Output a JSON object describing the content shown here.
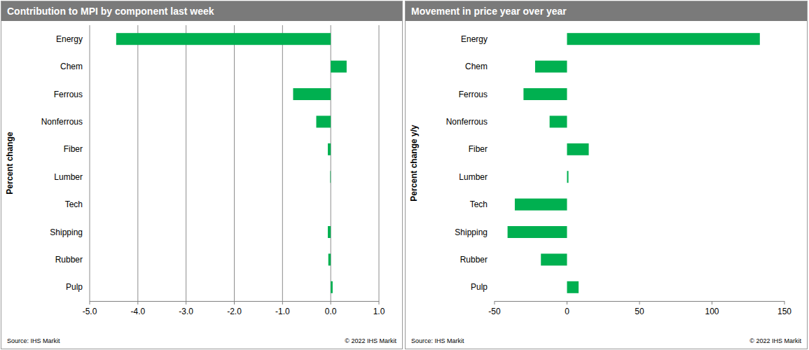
{
  "chart_data": [
    {
      "type": "bar",
      "orientation": "horizontal",
      "title": "Contribution to MPI by component last week",
      "ylabel": "Percent change",
      "categories": [
        "Energy",
        "Chem",
        "Ferrous",
        "Nonferrous",
        "Fiber",
        "Lumber",
        "Tech",
        "Shipping",
        "Rubber",
        "Pulp"
      ],
      "values": [
        -4.45,
        0.33,
        -0.78,
        -0.3,
        -0.06,
        -0.01,
        0.0,
        -0.06,
        -0.05,
        0.04
      ],
      "color": "#00b050",
      "xlim": [
        -5,
        1
      ],
      "xticks": [
        {
          "value": -5,
          "label": "-5.0"
        },
        {
          "value": -4,
          "label": "-4.0"
        },
        {
          "value": -3,
          "label": "-3.0"
        },
        {
          "value": -2,
          "label": "-2.0"
        },
        {
          "value": -1,
          "label": "-1.0"
        },
        {
          "value": 0,
          "label": "0.0"
        },
        {
          "value": 1,
          "label": "1.0"
        }
      ],
      "grid": true,
      "annotations": [
        "Source: IHS Markit",
        "© 2022 IHS Markit"
      ]
    },
    {
      "type": "bar",
      "orientation": "horizontal",
      "title": "Movement in price year over year",
      "ylabel": "Percent change y/y",
      "categories": [
        "Energy",
        "Chem",
        "Ferrous",
        "Nonferrous",
        "Fiber",
        "Lumber",
        "Tech",
        "Shipping",
        "Rubber",
        "Pulp"
      ],
      "values": [
        133,
        -22,
        -30,
        -12,
        15,
        1,
        -36,
        -41,
        -18,
        8
      ],
      "color": "#00b050",
      "xlim": [
        -50,
        150
      ],
      "xticks": [
        -50,
        0,
        50,
        100,
        150
      ],
      "grid": false,
      "annotations": [
        "Source: IHS Markit",
        "© 2022 IHS Markit"
      ]
    }
  ]
}
